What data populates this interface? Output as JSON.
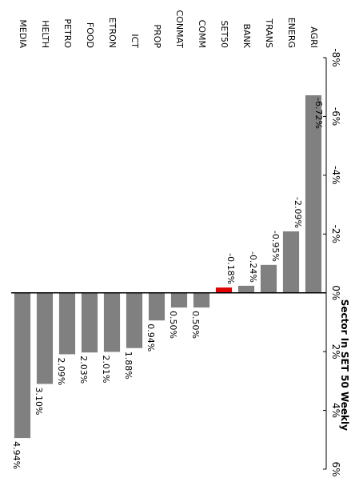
{
  "chart_data": {
    "type": "bar",
    "title": "Sector In SET 50 Weekly",
    "orientation": "horizontal",
    "categories": [
      "AGRI",
      "ENERG",
      "TRANS",
      "BANK",
      "SET50",
      "COMM",
      "CONMAT",
      "PROP",
      "ICT",
      "ETRON",
      "FOOD",
      "PETRO",
      "HELTH",
      "MEDIA"
    ],
    "values": [
      -6.72,
      -2.09,
      -0.95,
      -0.24,
      -0.18,
      0.5,
      0.5,
      0.94,
      1.88,
      2.01,
      2.03,
      2.09,
      3.1,
      4.94
    ],
    "value_labels": [
      "-6.72%",
      "-2.09%",
      "-0.95%",
      "-0.24%",
      "-0.18%",
      "0.50%",
      "0.50%",
      "0.94%",
      "1.88%",
      "2.01%",
      "2.03%",
      "2.09%",
      "3.10%",
      "4.94%"
    ],
    "ticks": [
      -8,
      -6,
      -4,
      -2,
      0,
      2,
      4,
      6
    ],
    "tick_labels": [
      "-8%",
      "-6%",
      "-4%",
      "-2%",
      "0%",
      "2%",
      "4%",
      "6%"
    ],
    "xlim": [
      -8,
      6
    ],
    "grid": false,
    "legend": "none",
    "colors": {
      "bar": "#808080",
      "highlight": "#e00000",
      "highlight_category": "SET50"
    }
  }
}
